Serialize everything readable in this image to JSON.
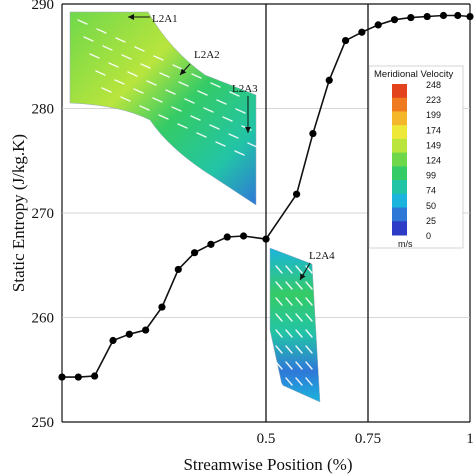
{
  "chart_data": {
    "type": "line",
    "xlabel": "Streamwise Position (%)",
    "ylabel": "Static Entropy (J/kg.K)",
    "xlim": [
      0,
      1
    ],
    "ylim": [
      250,
      290
    ],
    "xticks": [
      {
        "value": 0.5,
        "label": "0.5"
      },
      {
        "value": 0.75,
        "label": "0.75"
      },
      {
        "value": 1.0,
        "label": "1"
      }
    ],
    "yticks": [
      250,
      260,
      270,
      280,
      290
    ],
    "ytick_labels": [
      "250",
      "260",
      "270",
      "280",
      "290"
    ],
    "vertical_lines": [
      0.5,
      0.75
    ],
    "grid": "horizontal",
    "series": [
      {
        "color": "#000000",
        "marker": "circle",
        "x": [
          0.0,
          0.04,
          0.08,
          0.125,
          0.165,
          0.205,
          0.245,
          0.285,
          0.325,
          0.365,
          0.405,
          0.445,
          0.5,
          0.575,
          0.615,
          0.655,
          0.695,
          0.735,
          0.775,
          0.815,
          0.855,
          0.895,
          0.935,
          0.97,
          1.0
        ],
        "y": [
          254.3,
          254.3,
          254.4,
          257.8,
          258.4,
          258.8,
          261.0,
          264.6,
          266.2,
          267.0,
          267.7,
          267.8,
          267.5,
          271.8,
          277.6,
          282.7,
          286.5,
          287.3,
          288.0,
          288.5,
          288.7,
          288.8,
          288.9,
          288.9,
          288.8
        ]
      }
    ],
    "annotations": [
      "L2A1",
      "L2A2",
      "L2A3",
      "L2A4"
    ],
    "colorbar": {
      "title": "Meridional Velocity",
      "unit": "m/s",
      "labels": [
        "248",
        "223",
        "199",
        "174",
        "149",
        "124",
        "99",
        "74",
        "50",
        "25",
        "0"
      ],
      "colors": [
        "#e2431c",
        "#f07a20",
        "#f4b62a",
        "#eee838",
        "#b9e53d",
        "#6fd84a",
        "#35cb66",
        "#22c4a6",
        "#1ab4dc",
        "#2f78d8",
        "#2c3cc6"
      ]
    }
  }
}
